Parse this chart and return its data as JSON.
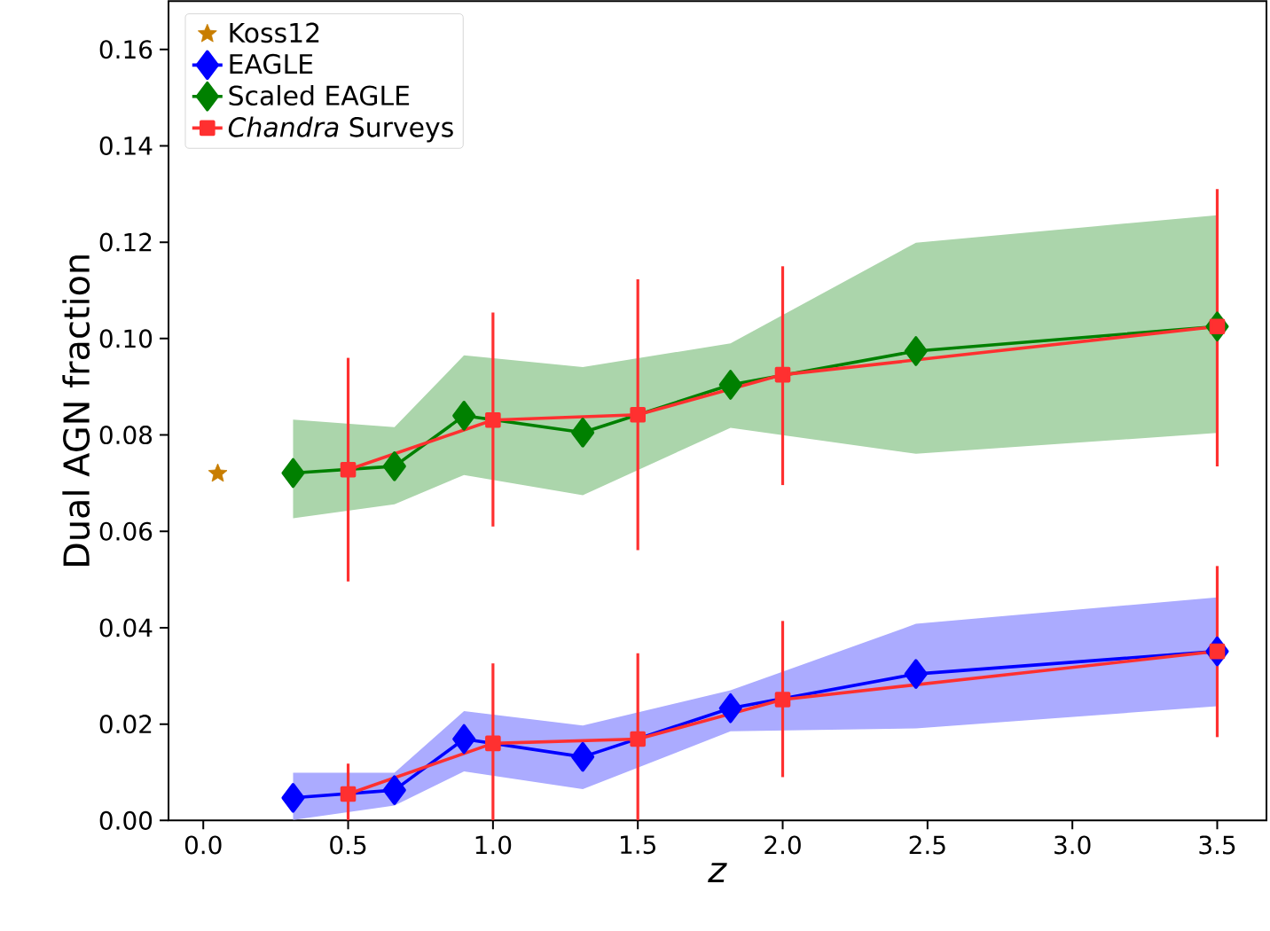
{
  "chart_data": {
    "type": "line",
    "xlabel": "*z*",
    "ylabel": "Dual AGN fraction",
    "xlim": [
      -0.12,
      3.67
    ],
    "ylim": [
      0,
      0.17
    ],
    "xticks": [
      {
        "value": 0,
        "label": "0.0"
      },
      {
        "value": 0.5,
        "label": "0.5"
      },
      {
        "value": 1,
        "label": "1.0"
      },
      {
        "value": 1.5,
        "label": "1.5"
      },
      {
        "value": 2,
        "label": "2.0"
      },
      {
        "value": 2.5,
        "label": "2.5"
      },
      {
        "value": 3,
        "label": "3.0"
      },
      {
        "value": 3.5,
        "label": "3.5"
      }
    ],
    "yticks": [
      {
        "value": 0,
        "label": "0.00"
      },
      {
        "value": 0.02,
        "label": "0.02"
      },
      {
        "value": 0.04,
        "label": "0.04"
      },
      {
        "value": 0.06,
        "label": "0.06"
      },
      {
        "value": 0.08,
        "label": "0.08"
      },
      {
        "value": 0.1,
        "label": "0.10"
      },
      {
        "value": 0.12,
        "label": "0.12"
      },
      {
        "value": 0.14,
        "label": "0.14"
      },
      {
        "value": 0.16,
        "label": "0.16"
      }
    ],
    "legend": "top left",
    "grid": false,
    "line_style": "solid",
    "series": [
      {
        "name": "Koss12",
        "type": "scatter",
        "marker": "star",
        "color": "#c87d00",
        "x": [
          0.05
        ],
        "values": [
          0.072
        ]
      },
      {
        "name": "EAGLE",
        "marker": "diamond",
        "color": "#0000ff",
        "x": [
          0.31,
          0.66,
          0.9,
          1.31,
          1.82,
          2.46,
          3.5
        ],
        "values": [
          0.0047,
          0.0063,
          0.0169,
          0.0132,
          0.0233,
          0.0304,
          0.0351
        ],
        "lower": [
          0.0001,
          0.0031,
          0.0102,
          0.0065,
          0.0185,
          0.0191,
          0.0237
        ],
        "upper": [
          0.0099,
          0.0099,
          0.0227,
          0.0197,
          0.027,
          0.0408,
          0.0463
        ]
      },
      {
        "name": "Scaled EAGLE",
        "marker": "diamond",
        "color": "#008000",
        "x": [
          0.31,
          0.66,
          0.9,
          1.31,
          1.82,
          2.46,
          3.5
        ],
        "values": [
          0.0721,
          0.0735,
          0.084,
          0.0805,
          0.0904,
          0.0974,
          0.1025
        ],
        "lower": [
          0.0627,
          0.0656,
          0.0717,
          0.0675,
          0.0815,
          0.0761,
          0.0804
        ],
        "upper": [
          0.0832,
          0.0816,
          0.0965,
          0.0941,
          0.099,
          0.1199,
          0.1256
        ]
      },
      {
        "name": "*Chandra* Surveys",
        "marker": "square",
        "color": "#ff3030",
        "x": [
          0.5,
          1,
          1.5,
          2,
          3.5
        ],
        "values": [
          0.0728,
          0.0831,
          0.0842,
          0.0925,
          0.1025
        ],
        "errors": [
          [
            0.0496,
            0.096
          ],
          [
            0.061,
            0.1054
          ],
          [
            0.0561,
            0.1123
          ],
          [
            0.0696,
            0.115
          ],
          [
            0.0735,
            0.131
          ]
        ]
      },
      {
        "marker": "square",
        "color": "#ff3030",
        "x": [
          0.5,
          1,
          1.5,
          2,
          3.5
        ],
        "values": [
          0.0055,
          0.016,
          0.0169,
          0.0251,
          0.0351
        ],
        "errors": [
          [
            0,
            0.0118
          ],
          [
            0,
            0.0326
          ],
          [
            0,
            0.0347
          ],
          [
            0.009,
            0.0414
          ],
          [
            0.0173,
            0.0528
          ]
        ]
      }
    ]
  }
}
